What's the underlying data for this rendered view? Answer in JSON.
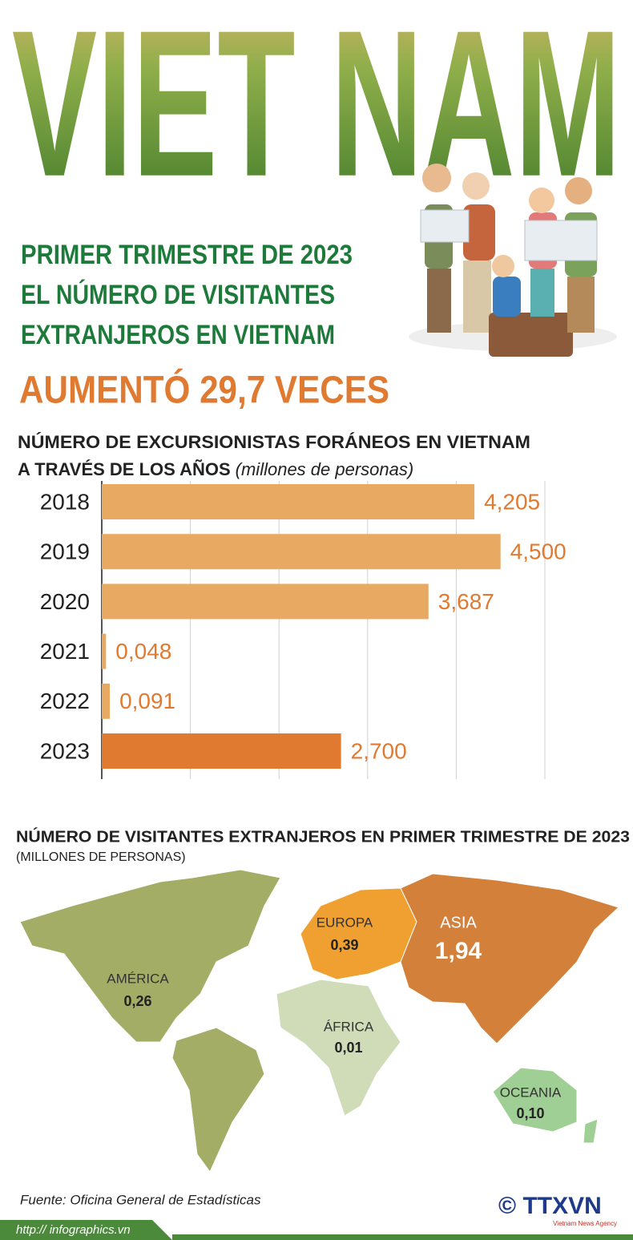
{
  "header": {
    "title": "VIET NAM",
    "lines": [
      "PRIMER TRIMESTRE DE 2023",
      "EL NÚMERO DE VISITANTES",
      "EXTRANJEROS EN VIETNAM"
    ],
    "highlight": "AUMENTÓ 29,7 VECES"
  },
  "chart_data": {
    "type": "bar",
    "orientation": "horizontal",
    "title": [
      "NÚMERO DE EXCURSIONISTAS FORÁNEOS EN VIETNAM",
      "A TRAVÉS DE LOS AÑOS"
    ],
    "subtitle": "(millones de personas)",
    "categories": [
      "2018",
      "2019",
      "2020",
      "2021",
      "2022",
      "2023"
    ],
    "values": [
      4.205,
      4.5,
      3.687,
      0.048,
      0.091,
      2.7
    ],
    "value_labels": [
      "4,205",
      "4,500",
      "3,687",
      "0,048",
      "0,091",
      "2,700"
    ],
    "colors": [
      "#e8a962",
      "#e8a962",
      "#e8a962",
      "#e8a962",
      "#e8a962",
      "#e07a30"
    ],
    "xlim": [
      0,
      5
    ],
    "xticks": [
      0,
      1,
      2,
      3,
      4,
      5
    ],
    "grid": true
  },
  "map": {
    "title": "NÚMERO DE VISITANTES EXTRANJEROS EN PRIMER TRIMESTRE DE 2023",
    "subtitle": "(MILLONES DE PERSONAS)",
    "regions": [
      {
        "name": "AMÉRICA",
        "value": 0.26,
        "value_label": "0,26",
        "color": "#a3ad66"
      },
      {
        "name": "EUROPA",
        "value": 0.39,
        "value_label": "0,39",
        "color": "#f0a030"
      },
      {
        "name": "ASIA",
        "value": 1.94,
        "value_label": "1,94",
        "color": "#d3803a"
      },
      {
        "name": "ÁFRICA",
        "value": 0.01,
        "value_label": "0,01",
        "color": "#cfdcb7"
      },
      {
        "name": "OCEANIA",
        "value": 0.1,
        "value_label": "0,10",
        "color": "#9fcf94"
      }
    ]
  },
  "footer": {
    "source": "Fuente: Oficina General de Estadísticas",
    "url": "http:// infographics.vn",
    "logo": "© TTXVN",
    "agency": "Vietnam News Agency"
  }
}
